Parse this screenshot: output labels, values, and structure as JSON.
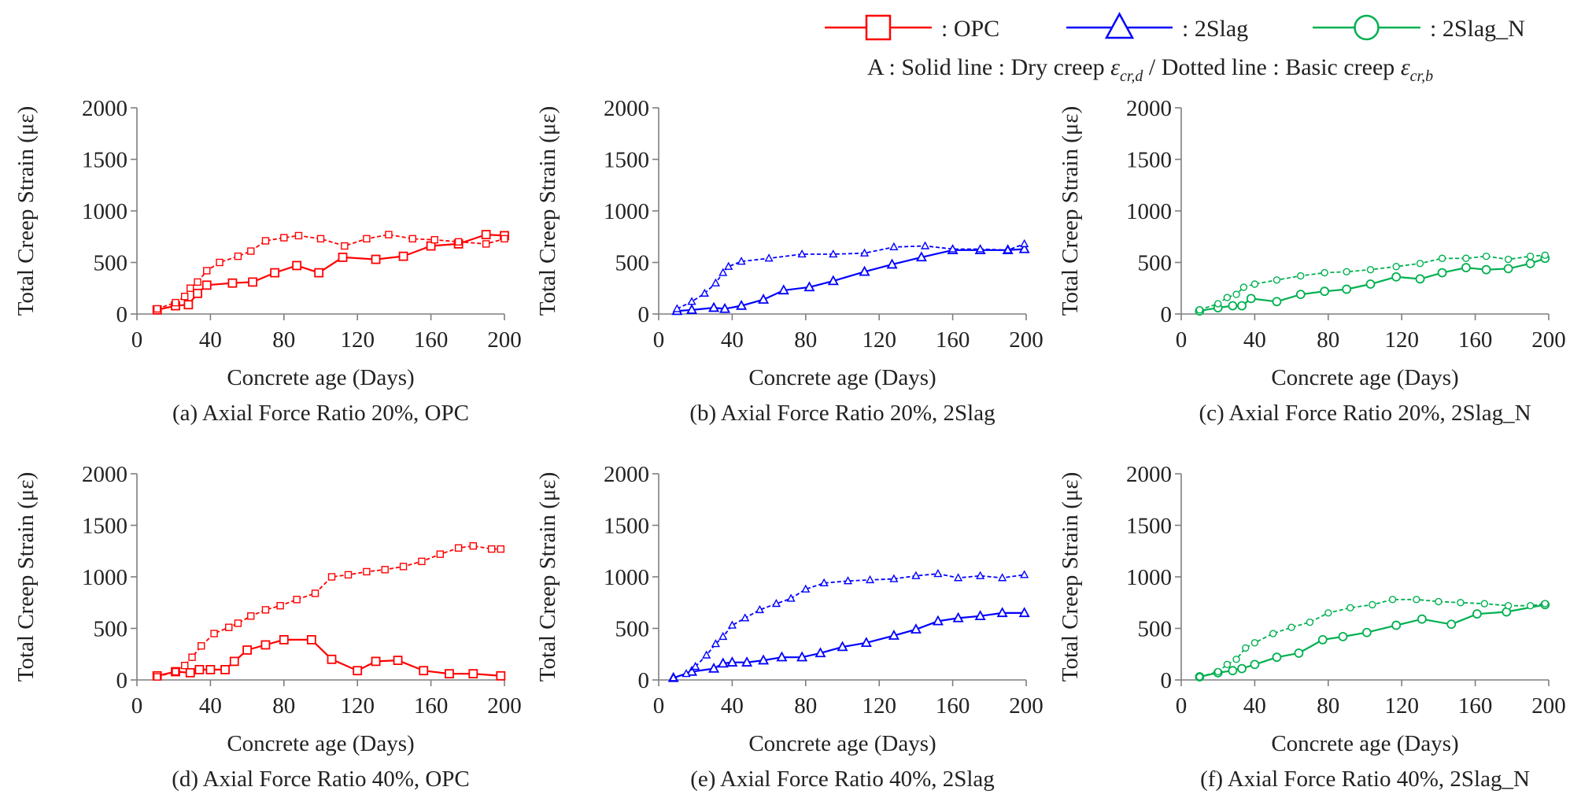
{
  "legend": {
    "entries": [
      {
        "label": ": OPC",
        "marker": "square",
        "color": "#ff0000"
      },
      {
        "label": ": 2Slag",
        "marker": "triangle",
        "color": "#0000ff"
      },
      {
        "label": ": 2Slag_N",
        "marker": "circle",
        "color": "#00b050"
      }
    ],
    "note_prefix": "A : Solid line : Dry creep ",
    "note_dry_symbol": "ε",
    "note_dry_sub": "cr,d",
    "note_mid": " / Dotted line : Basic creep ",
    "note_basic_symbol": "ε",
    "note_basic_sub": "cr,b"
  },
  "chart_data": [
    {
      "type": "line",
      "caption": "(a) Axial Force Ratio 20%, OPC",
      "xlabel": "Concrete age (Days)",
      "ylabel": "Total Creep Strain (με)",
      "xlim": [
        0,
        200
      ],
      "ylim": [
        0,
        2000
      ],
      "xticks": [
        "0",
        "40",
        "80",
        "120",
        "160",
        "200"
      ],
      "yticks": [
        "0",
        "500",
        "1000",
        "1500",
        "2000"
      ],
      "grid": false,
      "color": "#ff0000",
      "marker": "square",
      "series": [
        {
          "style": "solid",
          "x": [
            11,
            21,
            28,
            33,
            38,
            52,
            63,
            75,
            87,
            99,
            112,
            130,
            145,
            160,
            175,
            190,
            200
          ],
          "y": [
            40,
            80,
            90,
            200,
            280,
            300,
            310,
            400,
            470,
            400,
            550,
            530,
            560,
            660,
            680,
            770,
            760
          ]
        },
        {
          "style": "dotted",
          "x": [
            11,
            21,
            26,
            29,
            33,
            38,
            45,
            55,
            62,
            70,
            80,
            88,
            100,
            113,
            125,
            137,
            150,
            162,
            175,
            190,
            200
          ],
          "y": [
            50,
            110,
            170,
            250,
            310,
            420,
            500,
            560,
            610,
            710,
            740,
            760,
            730,
            660,
            730,
            770,
            730,
            720,
            700,
            680,
            730
          ]
        }
      ]
    },
    {
      "type": "line",
      "caption": "(b) Axial Force Ratio 20%, 2Slag",
      "xlabel": "Concrete age (Days)",
      "ylabel": "Total Creep Strain (με)",
      "xlim": [
        0,
        200
      ],
      "ylim": [
        0,
        2000
      ],
      "xticks": [
        "0",
        "40",
        "80",
        "120",
        "160",
        "200"
      ],
      "yticks": [
        "0",
        "500",
        "1000",
        "1500",
        "2000"
      ],
      "grid": false,
      "color": "#0000ff",
      "marker": "triangle",
      "series": [
        {
          "style": "solid",
          "x": [
            10,
            18,
            30,
            36,
            45,
            57,
            68,
            82,
            95,
            112,
            127,
            143,
            160,
            175,
            190,
            199
          ],
          "y": [
            30,
            40,
            60,
            50,
            80,
            140,
            230,
            260,
            320,
            410,
            480,
            550,
            620,
            620,
            620,
            630
          ]
        },
        {
          "style": "dotted",
          "x": [
            10,
            18,
            25,
            31,
            35,
            38,
            45,
            60,
            78,
            95,
            112,
            128,
            145,
            160,
            175,
            190,
            199
          ],
          "y": [
            50,
            120,
            200,
            300,
            400,
            460,
            510,
            540,
            580,
            580,
            590,
            650,
            660,
            630,
            630,
            620,
            680
          ]
        }
      ]
    },
    {
      "type": "line",
      "caption": "(c) Axial Force Ratio 20%, 2Slag_N",
      "xlabel": "Concrete age (Days)",
      "ylabel": "Total Creep Strain (με)",
      "xlim": [
        0,
        200
      ],
      "ylim": [
        0,
        2000
      ],
      "xticks": [
        "0",
        "40",
        "80",
        "120",
        "160",
        "200"
      ],
      "yticks": [
        "0",
        "500",
        "1000",
        "1500",
        "2000"
      ],
      "grid": false,
      "color": "#00b050",
      "marker": "circle",
      "series": [
        {
          "style": "solid",
          "x": [
            10,
            20,
            28,
            33,
            38,
            52,
            65,
            78,
            90,
            103,
            117,
            130,
            142,
            155,
            166,
            178,
            190,
            198
          ],
          "y": [
            30,
            60,
            80,
            80,
            150,
            120,
            190,
            220,
            240,
            290,
            360,
            340,
            400,
            450,
            430,
            440,
            490,
            540
          ]
        },
        {
          "style": "dotted",
          "x": [
            10,
            20,
            25,
            30,
            34,
            40,
            52,
            65,
            78,
            90,
            103,
            117,
            130,
            142,
            155,
            166,
            178,
            190,
            198
          ],
          "y": [
            40,
            100,
            160,
            190,
            260,
            290,
            330,
            370,
            400,
            410,
            430,
            460,
            490,
            540,
            540,
            560,
            530,
            560,
            570
          ]
        }
      ]
    },
    {
      "type": "line",
      "caption": "(d) Axial Force Ratio 40%, OPC",
      "xlabel": "Concrete age (Days)",
      "ylabel": "Total Creep Strain (με)",
      "xlim": [
        0,
        200
      ],
      "ylim": [
        0,
        2000
      ],
      "xticks": [
        "0",
        "40",
        "80",
        "120",
        "160",
        "200"
      ],
      "yticks": [
        "0",
        "500",
        "1000",
        "1500",
        "2000"
      ],
      "grid": false,
      "color": "#ff0000",
      "marker": "square",
      "series": [
        {
          "style": "solid",
          "x": [
            11,
            21,
            29,
            34,
            40,
            48,
            53,
            60,
            70,
            80,
            95,
            106,
            120,
            130,
            142,
            156,
            170,
            183,
            198
          ],
          "y": [
            40,
            80,
            70,
            100,
            100,
            100,
            180,
            290,
            340,
            390,
            390,
            200,
            90,
            180,
            190,
            90,
            60,
            60,
            40
          ]
        },
        {
          "style": "dotted",
          "x": [
            11,
            21,
            26,
            30,
            35,
            42,
            50,
            55,
            62,
            70,
            78,
            87,
            97,
            106,
            115,
            125,
            135,
            145,
            155,
            165,
            175,
            183,
            193,
            198
          ],
          "y": [
            30,
            80,
            140,
            220,
            330,
            450,
            510,
            550,
            620,
            680,
            720,
            780,
            840,
            1000,
            1020,
            1050,
            1070,
            1100,
            1150,
            1220,
            1280,
            1300,
            1270,
            1270
          ]
        }
      ]
    },
    {
      "type": "line",
      "caption": "(e) Axial Force Ratio 40%, 2Slag",
      "xlabel": "Concrete age (Days)",
      "ylabel": "Total Creep Strain (με)",
      "xlim": [
        0,
        200
      ],
      "ylim": [
        0,
        2000
      ],
      "xticks": [
        "0",
        "40",
        "80",
        "120",
        "160",
        "200"
      ],
      "yticks": [
        "0",
        "500",
        "1000",
        "1500",
        "2000"
      ],
      "grid": false,
      "color": "#0000ff",
      "marker": "triangle",
      "series": [
        {
          "style": "solid",
          "x": [
            8,
            18,
            30,
            35,
            40,
            48,
            57,
            67,
            78,
            88,
            100,
            113,
            128,
            140,
            152,
            163,
            175,
            187,
            199
          ],
          "y": [
            20,
            80,
            110,
            160,
            170,
            170,
            190,
            220,
            220,
            260,
            320,
            360,
            430,
            490,
            570,
            600,
            620,
            650,
            650
          ]
        },
        {
          "style": "dotted",
          "x": [
            8,
            15,
            20,
            26,
            31,
            35,
            40,
            47,
            55,
            64,
            72,
            80,
            90,
            103,
            115,
            128,
            140,
            152,
            163,
            175,
            187,
            199
          ],
          "y": [
            20,
            60,
            130,
            240,
            350,
            420,
            530,
            600,
            680,
            740,
            790,
            880,
            940,
            960,
            970,
            980,
            1010,
            1030,
            990,
            1010,
            990,
            1020
          ]
        }
      ]
    },
    {
      "type": "line",
      "caption": "(f) Axial Force Ratio 40%, 2Slag_N",
      "xlabel": "Concrete age (Days)",
      "ylabel": "Total Creep Strain (με)",
      "xlim": [
        0,
        200
      ],
      "ylim": [
        0,
        2000
      ],
      "xticks": [
        "0",
        "40",
        "80",
        "120",
        "160",
        "200"
      ],
      "yticks": [
        "0",
        "500",
        "1000",
        "1500",
        "2000"
      ],
      "grid": false,
      "color": "#00b050",
      "marker": "circle",
      "series": [
        {
          "style": "solid",
          "x": [
            10,
            20,
            28,
            33,
            40,
            52,
            64,
            77,
            88,
            101,
            117,
            131,
            147,
            161,
            177,
            198
          ],
          "y": [
            30,
            70,
            90,
            110,
            150,
            220,
            260,
            390,
            420,
            460,
            530,
            590,
            540,
            640,
            660,
            730
          ]
        },
        {
          "style": "dotted",
          "x": [
            10,
            20,
            25,
            30,
            35,
            40,
            50,
            60,
            70,
            80,
            92,
            104,
            115,
            128,
            140,
            152,
            165,
            178,
            190,
            198
          ],
          "y": [
            30,
            80,
            150,
            200,
            310,
            360,
            450,
            510,
            560,
            650,
            700,
            730,
            780,
            780,
            760,
            750,
            740,
            720,
            720,
            740
          ]
        }
      ]
    }
  ]
}
